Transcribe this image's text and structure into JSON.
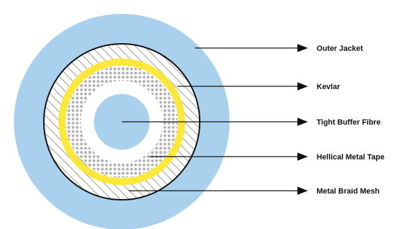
{
  "diagram": {
    "colors": {
      "outer_jacket": "#a9d0ec",
      "inner_core": "#a9d0ec",
      "kevlar": "#fbe83a",
      "hatch": "#a8a290",
      "dots": "#b5b5b5",
      "outline": "#111111",
      "background": "#ffffff"
    },
    "labels": [
      {
        "id": "outer-jacket",
        "text": "Outer Jacket"
      },
      {
        "id": "kevlar",
        "text": "Kevlar"
      },
      {
        "id": "tight-buffer-fibre",
        "text": "Tight Buffer Fibre"
      },
      {
        "id": "hellical-metal-tape",
        "text": "Hellical Metal Tape"
      },
      {
        "id": "metal-braid-mesh",
        "text": "Metal Braid Mesh"
      }
    ]
  }
}
